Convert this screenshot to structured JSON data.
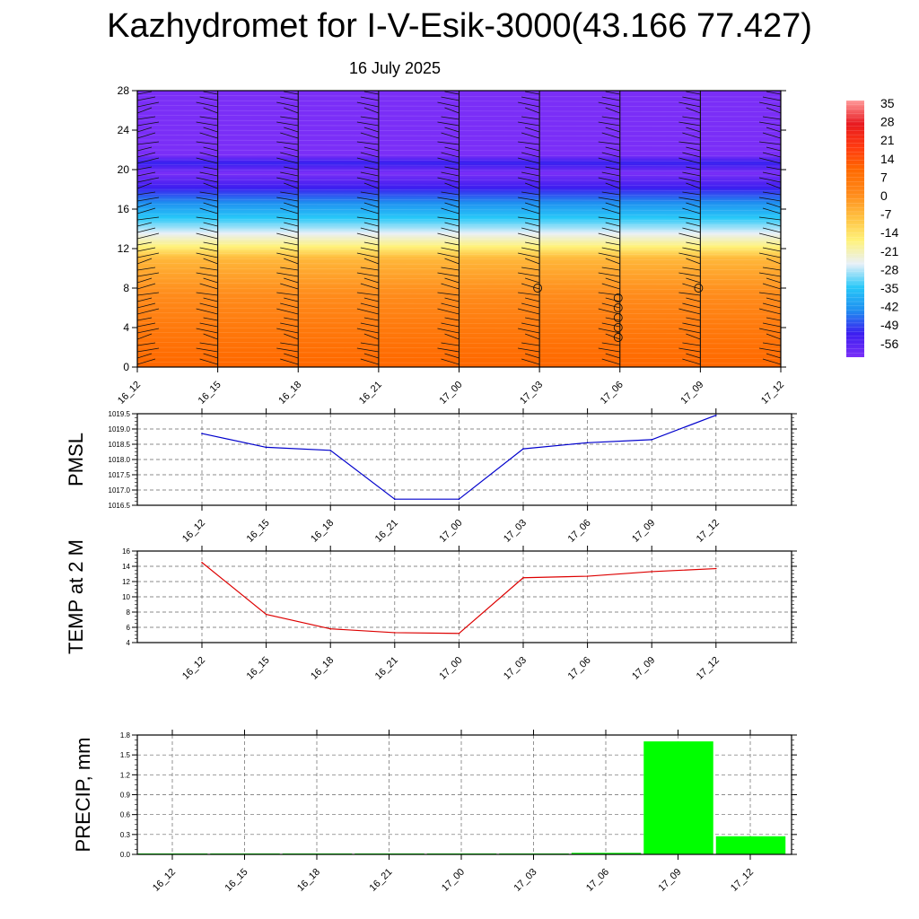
{
  "title": "Kazhydromet for I-V-Esik-3000(43.166 77.427)",
  "subtitle": "16 July 2025",
  "time_labels": [
    "16_12",
    "16_15",
    "16_18",
    "16_21",
    "17_00",
    "17_03",
    "17_06",
    "17_09",
    "17_12"
  ],
  "chart_data": [
    {
      "type": "heatmap",
      "y_ticks": [
        0,
        4,
        8,
        12,
        16,
        20,
        24,
        28
      ],
      "ylim": [
        0,
        28
      ],
      "colorbar_labels": [
        "35",
        "28",
        "21",
        "14",
        "7",
        "0",
        "-7",
        "-14",
        "-21",
        "-28",
        "-35",
        "-42",
        "-49",
        "-56"
      ],
      "colorbar_range": [
        -60,
        38
      ],
      "colors": [
        "#7b2ff7",
        "#3c1ef0",
        "#1f8ef0",
        "#28c8f8",
        "#e8f0f8",
        "#fff27a",
        "#ffc040",
        "#ff8a1a",
        "#ff6a00",
        "#ff3a10",
        "#e81a20",
        "#ff9a9a"
      ],
      "profile": [
        [
          0,
          12
        ],
        [
          4,
          7
        ],
        [
          8,
          1
        ],
        [
          11,
          -5
        ],
        [
          12.3,
          -16
        ],
        [
          14,
          -27
        ],
        [
          16,
          -38
        ],
        [
          18,
          -50
        ],
        [
          19.7,
          -60
        ],
        [
          20.7,
          -50
        ],
        [
          21.5,
          -60
        ],
        [
          28,
          -60
        ]
      ]
    },
    {
      "type": "line",
      "ylabel": "PMSL",
      "y_ticks": [
        "1016.5",
        "1017.0",
        "1017.5",
        "1018.0",
        "1018.5",
        "1019.0",
        "1019.5"
      ],
      "ylim": [
        1016.5,
        1019.5
      ],
      "color": "#0000cc",
      "values": [
        1018.85,
        1018.4,
        1018.3,
        1016.7,
        1016.7,
        1018.35,
        1018.55,
        1018.65,
        1019.45
      ]
    },
    {
      "type": "line",
      "ylabel": "TEMP at 2 M",
      "y_ticks": [
        "4",
        "6",
        "8",
        "10",
        "12",
        "14",
        "16"
      ],
      "ylim": [
        4,
        16
      ],
      "color": "#dd0000",
      "values": [
        14.5,
        7.7,
        5.8,
        5.3,
        5.2,
        12.5,
        12.7,
        13.3,
        13.7
      ]
    },
    {
      "type": "bar",
      "ylabel": "PRECIP, mm",
      "y_ticks": [
        "0.0",
        "0.3",
        "0.6",
        "0.9",
        "1.2",
        "1.5",
        "1.8"
      ],
      "ylim": [
        0,
        1.8
      ],
      "color": "#00ff00",
      "values": [
        0,
        0,
        0,
        0,
        0,
        0,
        0.02,
        1.7,
        0.27
      ]
    }
  ]
}
